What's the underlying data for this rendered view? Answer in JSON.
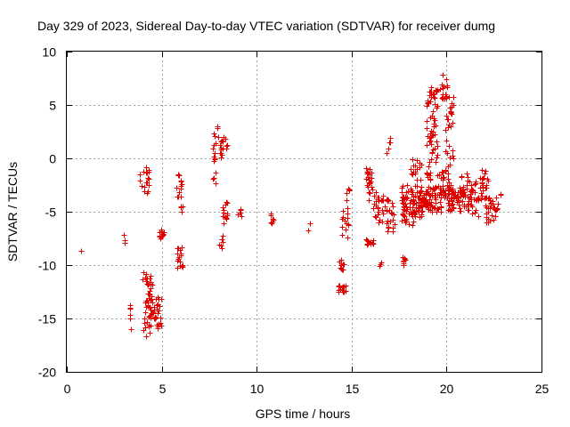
{
  "chart_data": {
    "type": "scatter",
    "title": "Day 329 of 2023, Sidereal Day-to-day VTEC variation (SDTVAR) for receiver dumg",
    "xlabel": "GPS time / hours",
    "ylabel": "SDTVAR / TECUs",
    "xlim": [
      0,
      25
    ],
    "ylim": [
      -20,
      10
    ],
    "xticks": [
      "0",
      "5",
      "10",
      "15",
      "20",
      "25"
    ],
    "yticks": [
      "-20",
      "-15",
      "-10",
      "-5",
      "0",
      "5",
      "10"
    ],
    "grid": true,
    "marker": "+",
    "marker_color": "#e00000",
    "series": [
      {
        "name": "SDTVAR",
        "clusters": [
          {
            "x": 0.75,
            "y": -8.7,
            "dx": 0.0,
            "dy": 0.0,
            "n": 1
          },
          {
            "x": 3.0,
            "y": -7.5,
            "dx": 0.05,
            "dy": 0.6,
            "n": 4
          },
          {
            "x": 3.35,
            "y": -14.8,
            "dx": 0.05,
            "dy": 1.2,
            "n": 6
          },
          {
            "x": 4.1,
            "y": -2.2,
            "dx": 0.25,
            "dy": 1.4,
            "n": 18
          },
          {
            "x": 4.25,
            "y": -13.5,
            "dx": 0.25,
            "dy": 3.2,
            "n": 45
          },
          {
            "x": 4.7,
            "y": -14.5,
            "dx": 0.3,
            "dy": 1.6,
            "n": 30
          },
          {
            "x": 4.95,
            "y": -7.0,
            "dx": 0.15,
            "dy": 0.6,
            "n": 12
          },
          {
            "x": 5.9,
            "y": -2.5,
            "dx": 0.15,
            "dy": 1.3,
            "n": 14
          },
          {
            "x": 5.95,
            "y": -9.3,
            "dx": 0.15,
            "dy": 1.1,
            "n": 18
          },
          {
            "x": 6.0,
            "y": -4.6,
            "dx": 0.1,
            "dy": 0.4,
            "n": 4
          },
          {
            "x": 7.8,
            "y": 1.5,
            "dx": 0.12,
            "dy": 1.8,
            "n": 12
          },
          {
            "x": 7.75,
            "y": -1.7,
            "dx": 0.08,
            "dy": 0.6,
            "n": 4
          },
          {
            "x": 8.2,
            "y": 1.0,
            "dx": 0.25,
            "dy": 1.2,
            "n": 18
          },
          {
            "x": 8.3,
            "y": -5.0,
            "dx": 0.15,
            "dy": 1.2,
            "n": 14
          },
          {
            "x": 8.1,
            "y": -7.8,
            "dx": 0.1,
            "dy": 0.8,
            "n": 6
          },
          {
            "x": 9.1,
            "y": -4.9,
            "dx": 0.1,
            "dy": 0.5,
            "n": 6
          },
          {
            "x": 10.8,
            "y": -5.7,
            "dx": 0.1,
            "dy": 0.7,
            "n": 8
          },
          {
            "x": 12.75,
            "y": -6.2,
            "dx": 0.05,
            "dy": 0.6,
            "n": 2
          },
          {
            "x": 14.5,
            "y": -10.0,
            "dx": 0.15,
            "dy": 0.5,
            "n": 10
          },
          {
            "x": 14.5,
            "y": -12.2,
            "dx": 0.2,
            "dy": 0.4,
            "n": 16
          },
          {
            "x": 14.65,
            "y": -6.0,
            "dx": 0.2,
            "dy": 1.8,
            "n": 14
          },
          {
            "x": 14.8,
            "y": -3.5,
            "dx": 0.1,
            "dy": 0.8,
            "n": 5
          },
          {
            "x": 15.95,
            "y": -2.5,
            "dx": 0.2,
            "dy": 1.8,
            "n": 24
          },
          {
            "x": 15.95,
            "y": -7.8,
            "dx": 0.2,
            "dy": 0.3,
            "n": 12
          },
          {
            "x": 16.4,
            "y": -4.6,
            "dx": 0.25,
            "dy": 1.5,
            "n": 26
          },
          {
            "x": 16.5,
            "y": -10.0,
            "dx": 0.1,
            "dy": 1.2,
            "n": 4
          },
          {
            "x": 17.0,
            "y": -5.5,
            "dx": 0.25,
            "dy": 1.8,
            "n": 24
          },
          {
            "x": 16.95,
            "y": 1.0,
            "dx": 0.1,
            "dy": 1.3,
            "n": 5
          },
          {
            "x": 17.75,
            "y": -9.6,
            "dx": 0.12,
            "dy": 0.4,
            "n": 8
          },
          {
            "x": 17.95,
            "y": -4.5,
            "dx": 0.35,
            "dy": 2.0,
            "n": 50
          },
          {
            "x": 18.4,
            "y": -2.5,
            "dx": 0.35,
            "dy": 3.0,
            "n": 55
          },
          {
            "x": 18.8,
            "y": -4.0,
            "dx": 0.35,
            "dy": 1.0,
            "n": 40
          },
          {
            "x": 19.25,
            "y": 2.5,
            "dx": 0.3,
            "dy": 4.5,
            "n": 70
          },
          {
            "x": 19.35,
            "y": -3.8,
            "dx": 0.35,
            "dy": 1.2,
            "n": 45
          },
          {
            "x": 19.85,
            "y": 6.8,
            "dx": 0.2,
            "dy": 1.2,
            "n": 16
          },
          {
            "x": 19.9,
            "y": -2.5,
            "dx": 0.3,
            "dy": 1.5,
            "n": 30
          },
          {
            "x": 20.15,
            "y": 2.5,
            "dx": 0.25,
            "dy": 3.5,
            "n": 30
          },
          {
            "x": 20.5,
            "y": -3.8,
            "dx": 0.45,
            "dy": 1.2,
            "n": 50
          },
          {
            "x": 21.0,
            "y": -2.5,
            "dx": 0.3,
            "dy": 1.2,
            "n": 22
          },
          {
            "x": 21.3,
            "y": -4.5,
            "dx": 0.4,
            "dy": 1.0,
            "n": 24
          },
          {
            "x": 21.6,
            "y": -2.8,
            "dx": 0.35,
            "dy": 1.0,
            "n": 22
          },
          {
            "x": 22.0,
            "y": -2.0,
            "dx": 0.2,
            "dy": 1.0,
            "n": 12
          },
          {
            "x": 22.3,
            "y": -4.8,
            "dx": 0.35,
            "dy": 1.2,
            "n": 26
          },
          {
            "x": 22.5,
            "y": -4.5,
            "dx": 0.2,
            "dy": 0.3,
            "n": 10
          },
          {
            "x": 22.85,
            "y": -3.4,
            "dx": 0.05,
            "dy": 0.1,
            "n": 2
          }
        ]
      }
    ]
  }
}
